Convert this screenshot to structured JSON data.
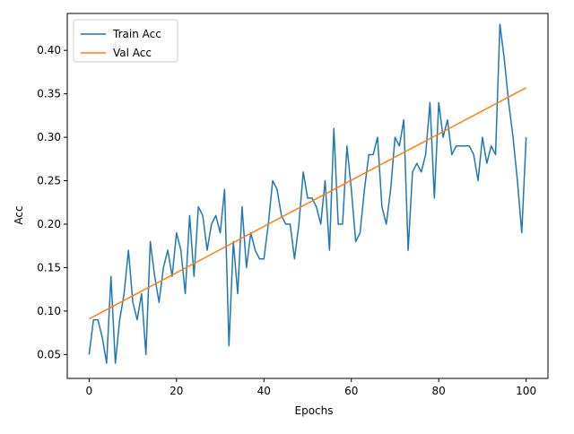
{
  "chart_data": {
    "type": "line",
    "title": "",
    "xlabel": "Epochs",
    "ylabel": "Acc",
    "xlim": [
      -5,
      105
    ],
    "ylim": [
      0.0225,
      0.4425
    ],
    "xticks": [
      0,
      20,
      40,
      60,
      80,
      100
    ],
    "xtick_labels": [
      "0",
      "20",
      "40",
      "60",
      "80",
      "100"
    ],
    "yticks": [
      0.05,
      0.1,
      0.15,
      0.2,
      0.25,
      0.3,
      0.35,
      0.4
    ],
    "ytick_labels": [
      "0.05",
      "0.10",
      "0.15",
      "0.20",
      "0.25",
      "0.30",
      "0.35",
      "0.40"
    ],
    "grid": false,
    "legend_position": "top-left",
    "series": [
      {
        "name": "Train Acc",
        "color": "#1f77b4",
        "x": [
          0,
          1,
          2,
          3,
          4,
          5,
          6,
          7,
          8,
          9,
          10,
          11,
          12,
          13,
          14,
          15,
          16,
          17,
          18,
          19,
          20,
          21,
          22,
          23,
          24,
          25,
          26,
          27,
          28,
          29,
          30,
          31,
          32,
          33,
          34,
          35,
          36,
          37,
          38,
          39,
          40,
          41,
          42,
          43,
          44,
          45,
          46,
          47,
          48,
          49,
          50,
          51,
          52,
          53,
          54,
          55,
          56,
          57,
          58,
          59,
          60,
          61,
          62,
          63,
          64,
          65,
          66,
          67,
          68,
          69,
          70,
          71,
          72,
          73,
          74,
          75,
          76,
          77,
          78,
          79,
          80,
          81,
          82,
          83,
          84,
          85,
          86,
          87,
          88,
          89,
          90,
          91,
          92,
          93,
          94,
          95,
          96,
          97,
          98,
          99,
          100
        ],
        "values": [
          0.05,
          0.09,
          0.09,
          0.07,
          0.04,
          0.14,
          0.04,
          0.09,
          0.12,
          0.17,
          0.11,
          0.09,
          0.12,
          0.05,
          0.18,
          0.14,
          0.11,
          0.15,
          0.17,
          0.14,
          0.19,
          0.17,
          0.12,
          0.21,
          0.14,
          0.22,
          0.21,
          0.17,
          0.2,
          0.21,
          0.19,
          0.24,
          0.06,
          0.18,
          0.12,
          0.22,
          0.15,
          0.19,
          0.17,
          0.16,
          0.16,
          0.2,
          0.25,
          0.24,
          0.21,
          0.2,
          0.2,
          0.16,
          0.2,
          0.26,
          0.23,
          0.23,
          0.22,
          0.2,
          0.25,
          0.17,
          0.31,
          0.2,
          0.2,
          0.29,
          0.24,
          0.18,
          0.19,
          0.24,
          0.28,
          0.28,
          0.3,
          0.22,
          0.2,
          0.24,
          0.3,
          0.29,
          0.32,
          0.17,
          0.26,
          0.27,
          0.26,
          0.28,
          0.34,
          0.23,
          0.34,
          0.3,
          0.32,
          0.28,
          0.29,
          0.29,
          0.29,
          0.29,
          0.28,
          0.25,
          0.3,
          0.27,
          0.29,
          0.28,
          0.43,
          0.39,
          0.34,
          0.3,
          0.25,
          0.19,
          0.3
        ]
      },
      {
        "name": "Val Acc",
        "color": "#ff7f0e",
        "x": [
          0,
          100
        ],
        "values": [
          0.091,
          0.357
        ]
      }
    ]
  }
}
